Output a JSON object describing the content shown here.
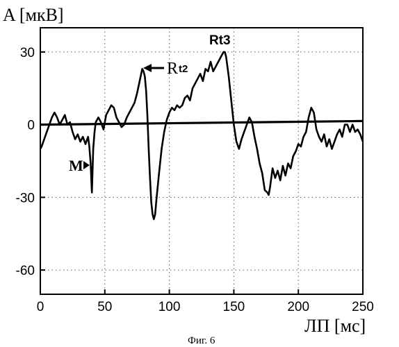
{
  "chart_data": {
    "type": "line",
    "ylabel": "A [мкВ]",
    "xlabel": "ЛП [мс]",
    "caption": "Фиг. 6",
    "xlim": [
      0,
      250
    ],
    "ylim": [
      -70,
      40
    ],
    "xticks": [
      0,
      50,
      100,
      150,
      200,
      250
    ],
    "yticks": [
      30,
      0,
      -30,
      -60
    ],
    "grid": true,
    "annotations": {
      "rt3": "Rt3",
      "rt2_r": "R",
      "rt2_sub": "t2",
      "m": "M"
    },
    "baseline": {
      "x": [
        0,
        250
      ],
      "y": [
        0,
        1.5
      ]
    },
    "series": [
      {
        "x": [
          0,
          1,
          3,
          5,
          7,
          9,
          11,
          13,
          15,
          17,
          19,
          21,
          23,
          25,
          27,
          29,
          31,
          33,
          35,
          37,
          38,
          39,
          40,
          41,
          42,
          43,
          45,
          47,
          49,
          51,
          53,
          55,
          57,
          59,
          61,
          63,
          65,
          67,
          69,
          71,
          73,
          75,
          77,
          79,
          80,
          81,
          82,
          83,
          84,
          85,
          86,
          87,
          88,
          89,
          90,
          92,
          94,
          96,
          98,
          100,
          102,
          104,
          106,
          108,
          110,
          112,
          114,
          116,
          118,
          120,
          122,
          124,
          126,
          128,
          130,
          132,
          134,
          136,
          138,
          140,
          142,
          143,
          144,
          146,
          148,
          150,
          152,
          154,
          156,
          158,
          160,
          162,
          164,
          166,
          168,
          170,
          172,
          174,
          176,
          177,
          178,
          180,
          182,
          184,
          186,
          188,
          190,
          192,
          194,
          196,
          198,
          200,
          202,
          204,
          206,
          208,
          210,
          212,
          214,
          216,
          218,
          220,
          222,
          224,
          226,
          228,
          230,
          232,
          234,
          236,
          238,
          240,
          242,
          244,
          246,
          248,
          250
        ],
        "y": [
          -10,
          -9,
          -6,
          -3,
          0,
          3,
          5,
          3,
          0,
          2,
          4,
          0,
          1,
          -3,
          -6,
          -4,
          -7,
          -5,
          -8,
          -5,
          -9,
          -16,
          -28,
          -10,
          -3,
          1,
          3,
          1,
          -2,
          4,
          6,
          8,
          7,
          3,
          1,
          -1,
          0,
          3,
          5,
          7,
          9,
          13,
          18,
          23,
          22,
          20,
          14,
          4,
          -10,
          -22,
          -32,
          -37,
          -39,
          -37,
          -31,
          -20,
          -10,
          -3,
          2,
          5,
          7,
          6,
          8,
          7,
          8,
          11,
          12,
          10,
          15,
          17,
          19,
          21,
          18,
          23,
          22,
          26,
          22,
          24,
          26,
          28,
          30,
          30,
          28,
          20,
          10,
          0,
          -7,
          -10,
          -6,
          -3,
          0,
          3,
          1,
          -5,
          -10,
          -16,
          -20,
          -27,
          -28,
          -29,
          -26,
          -18,
          -22,
          -19,
          -23,
          -17,
          -21,
          -16,
          -18,
          -13,
          -11,
          -8,
          -9,
          -5,
          -3,
          3,
          7,
          5,
          -2,
          -5,
          -7,
          -4,
          -9,
          -6,
          -10,
          -7,
          -4,
          -2,
          -5,
          0,
          0,
          -3,
          0,
          -3,
          -2,
          -4,
          -7
        ]
      }
    ]
  }
}
